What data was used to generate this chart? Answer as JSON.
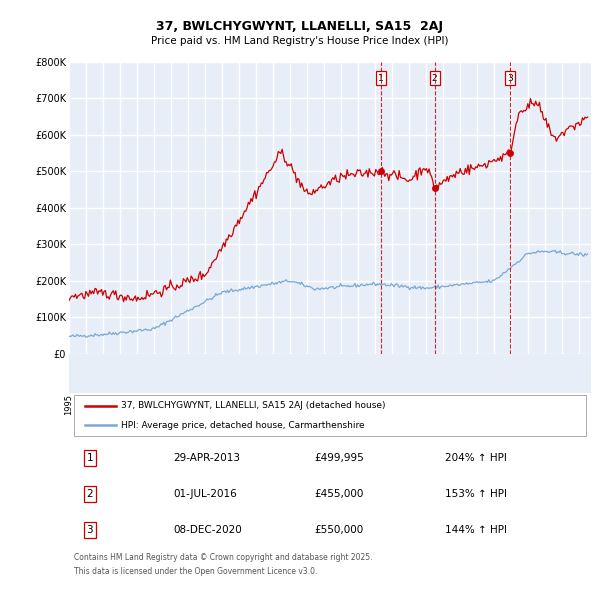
{
  "title": "37, BWLCHYGWYNT, LLANELLI, SA15  2AJ",
  "subtitle": "Price paid vs. HM Land Registry's House Price Index (HPI)",
  "property_label": "37, BWLCHYGWYNT, LLANELLI, SA15 2AJ (detached house)",
  "hpi_label": "HPI: Average price, detached house, Carmarthenshire",
  "sale_color": "#cc0000",
  "hpi_color": "#7aa8d4",
  "background_color": "#e8eef8",
  "grid_color": "#ffffff",
  "ylim": [
    0,
    800000
  ],
  "yticks": [
    0,
    100000,
    200000,
    300000,
    400000,
    500000,
    600000,
    700000,
    800000
  ],
  "ytick_labels": [
    "£0",
    "£100K",
    "£200K",
    "£300K",
    "£400K",
    "£500K",
    "£600K",
    "£700K",
    "£800K"
  ],
  "sale_events": [
    {
      "label": "1",
      "date": "29-APR-2013",
      "x": 2013.33,
      "price": 499995,
      "hpi_pct": "204%"
    },
    {
      "label": "2",
      "date": "01-JUL-2016",
      "x": 2016.5,
      "price": 455000,
      "hpi_pct": "153%"
    },
    {
      "label": "3",
      "date": "08-DEC-2020",
      "x": 2020.92,
      "price": 550000,
      "hpi_pct": "144%"
    }
  ],
  "footer_line1": "Contains HM Land Registry data © Crown copyright and database right 2025.",
  "footer_line2": "This data is licensed under the Open Government Licence v3.0.",
  "sale_prices_formatted": [
    "£499,995",
    "£455,000",
    "£550,000"
  ],
  "hpi_pcts": [
    "204% ↑ HPI",
    "153% ↑ HPI",
    "144% ↑ HPI"
  ],
  "sale_dates_formatted": [
    "29-APR-2013",
    "01-JUL-2016",
    "08-DEC-2020"
  ],
  "xmin": 1995,
  "xmax": 2025.7
}
